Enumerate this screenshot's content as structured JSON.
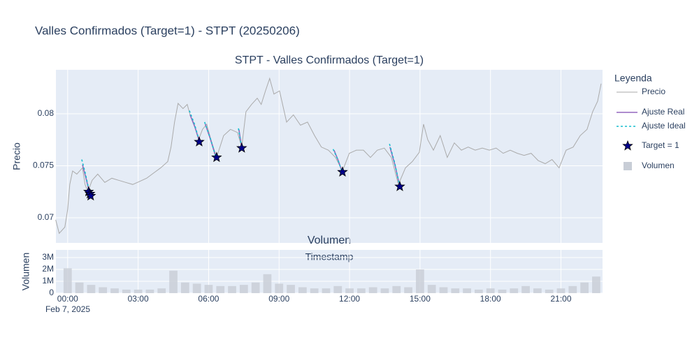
{
  "chart_data": [
    {
      "type": "line",
      "title": "Valles Confirmados (Target=1) - STPT (20250206)",
      "subtitle": "STPT - Valles Confirmados (Target=1)",
      "ylabel": "Precio",
      "legend_title": "Leyenda",
      "xlim": [
        -0.5,
        22.77
      ],
      "ylim": [
        0.06758,
        0.08423
      ],
      "yticks": [
        0.07,
        0.075,
        0.08
      ],
      "grid": true,
      "series": [
        {
          "name": "Precio",
          "color": "#aaaaaa",
          "style": "line",
          "x": [
            -0.51,
            -0.36,
            -0.12,
            0,
            0.09,
            0.21,
            0.39,
            0.63,
            0.74,
            0.86,
            1.04,
            1.28,
            1.58,
            1.88,
            2.17,
            2.47,
            2.77,
            3.07,
            3.36,
            3.66,
            3.96,
            4.26,
            4.4,
            4.55,
            4.7,
            4.91,
            5.09,
            5.21,
            5.39,
            5.57,
            5.74,
            5.92,
            6.1,
            6.34,
            6.64,
            6.93,
            7.23,
            7.41,
            7.59,
            7.83,
            8.07,
            8.24,
            8.42,
            8.6,
            8.78,
            9.02,
            9.32,
            9.61,
            9.91,
            10.21,
            10.51,
            10.8,
            11.1,
            11.4,
            11.7,
            11.99,
            12.29,
            12.59,
            12.89,
            13.18,
            13.48,
            13.78,
            14.08,
            14.38,
            14.67,
            14.97,
            15.15,
            15.33,
            15.57,
            15.86,
            16.16,
            16.46,
            16.76,
            17.05,
            17.35,
            17.65,
            17.95,
            18.24,
            18.54,
            18.84,
            19.14,
            19.43,
            19.73,
            20.03,
            20.33,
            20.62,
            20.92,
            21.22,
            21.52,
            21.82,
            22.11,
            22.35,
            22.56,
            22.71
          ],
          "values": [
            0.0698,
            0.0685,
            0.0691,
            0.0708,
            0.0732,
            0.0745,
            0.0742,
            0.0748,
            0.0732,
            0.0725,
            0.0736,
            0.0742,
            0.0734,
            0.0738,
            0.0736,
            0.0734,
            0.0732,
            0.0735,
            0.0738,
            0.0743,
            0.0748,
            0.0754,
            0.0768,
            0.0792,
            0.081,
            0.0805,
            0.0809,
            0.0799,
            0.079,
            0.0775,
            0.0785,
            0.079,
            0.0775,
            0.0758,
            0.0779,
            0.0785,
            0.0782,
            0.0768,
            0.0802,
            0.0809,
            0.0815,
            0.0809,
            0.0822,
            0.0834,
            0.0819,
            0.0822,
            0.0792,
            0.0799,
            0.0789,
            0.0792,
            0.0779,
            0.0768,
            0.0765,
            0.0758,
            0.0745,
            0.0762,
            0.0765,
            0.0765,
            0.0758,
            0.0765,
            0.0767,
            0.0758,
            0.0732,
            0.0748,
            0.0754,
            0.0763,
            0.079,
            0.0775,
            0.0765,
            0.0779,
            0.0758,
            0.0772,
            0.0765,
            0.0768,
            0.0765,
            0.0767,
            0.0765,
            0.0767,
            0.0762,
            0.0765,
            0.0762,
            0.076,
            0.0762,
            0.0755,
            0.0752,
            0.0756,
            0.0748,
            0.0765,
            0.0768,
            0.0779,
            0.0785,
            0.0802,
            0.0812,
            0.0829
          ]
        },
        {
          "name": "Ajuste Real",
          "color": "#9467bd",
          "style": "line",
          "x": [
            0.63,
            0.78,
            0.92,
            null,
            5.21,
            5.42,
            5.63,
            null,
            5.86,
            6.1,
            6.34,
            null,
            7.29,
            7.41,
            null,
            11.34,
            11.52,
            11.7,
            null,
            13.72,
            13.93,
            14.14
          ],
          "values": [
            0.0751,
            0.0738,
            0.0725,
            null,
            0.0799,
            0.0787,
            0.0772,
            null,
            0.079,
            0.0774,
            0.0756,
            null,
            0.0785,
            0.0767,
            null,
            0.0765,
            0.0755,
            0.0743,
            null,
            0.0768,
            0.0751,
            0.073
          ]
        },
        {
          "name": "Ajuste Ideal",
          "color": "#17becf",
          "style": "dash",
          "x": [
            0.6,
            0.76,
            0.92,
            null,
            5.18,
            5.4,
            5.63,
            null,
            5.83,
            6.08,
            6.34,
            null,
            7.27,
            7.41,
            null,
            11.3,
            11.5,
            11.7,
            null,
            13.7,
            13.92,
            14.14
          ],
          "values": [
            0.0756,
            0.0742,
            0.0725,
            null,
            0.0803,
            0.079,
            0.0772,
            null,
            0.0792,
            0.0776,
            0.0756,
            null,
            0.0786,
            0.0767,
            null,
            0.0766,
            0.0756,
            0.0743,
            null,
            0.0771,
            0.0753,
            0.073
          ]
        },
        {
          "name": "Target = 1",
          "color": "#00008b",
          "style": "star",
          "x": [
            0.89,
            0.95,
            0.98,
            5.6,
            6.34,
            7.41,
            11.7,
            14.14
          ],
          "values": [
            0.0725,
            0.0723,
            0.0721,
            0.0773,
            0.0758,
            0.0767,
            0.0744,
            0.073
          ]
        }
      ]
    },
    {
      "type": "bar",
      "title": "Volumen",
      "xlabel": "Timestamp",
      "ylabel": "Volumen",
      "x_date_label": "Feb 7, 2025",
      "xlim": [
        -0.5,
        22.77
      ],
      "ylim": [
        0,
        3650000
      ],
      "xticks": [
        {
          "value": 0,
          "label": "00:00"
        },
        {
          "value": 3,
          "label": "03:00"
        },
        {
          "value": 6,
          "label": "06:00"
        },
        {
          "value": 9,
          "label": "09:00"
        },
        {
          "value": 12,
          "label": "12:00"
        },
        {
          "value": 15,
          "label": "15:00"
        },
        {
          "value": 18,
          "label": "18:00"
        },
        {
          "value": 21,
          "label": "21:00"
        }
      ],
      "yticks": [
        0,
        {
          "value": 1000000,
          "label": "1M"
        },
        {
          "value": 2000000,
          "label": "2M"
        },
        {
          "value": 3000000,
          "label": "3M"
        }
      ],
      "grid": true,
      "series": [
        {
          "name": "Volumen",
          "color": "#c8cdd6",
          "x": [
            0,
            0.5,
            1,
            1.5,
            2,
            2.5,
            3,
            3.5,
            4,
            4.5,
            5,
            5.5,
            6,
            6.5,
            7,
            7.5,
            8,
            8.5,
            9,
            9.5,
            10,
            10.5,
            11,
            11.5,
            12,
            12.5,
            13,
            13.5,
            14,
            14.5,
            15,
            15.5,
            16,
            16.5,
            17,
            17.5,
            18,
            18.5,
            19,
            19.5,
            20,
            20.5,
            21,
            21.5,
            22,
            22.5
          ],
          "values": [
            2100000,
            900000,
            700000,
            500000,
            400000,
            300000,
            300000,
            300000,
            400000,
            1900000,
            900000,
            800000,
            700000,
            600000,
            600000,
            700000,
            900000,
            1600000,
            800000,
            700000,
            500000,
            400000,
            400000,
            600000,
            400000,
            400000,
            500000,
            400000,
            600000,
            500000,
            2000000,
            700000,
            500000,
            400000,
            400000,
            300000,
            400000,
            300000,
            400000,
            600000,
            400000,
            300000,
            400000,
            600000,
            900000,
            1400000
          ]
        }
      ]
    }
  ]
}
